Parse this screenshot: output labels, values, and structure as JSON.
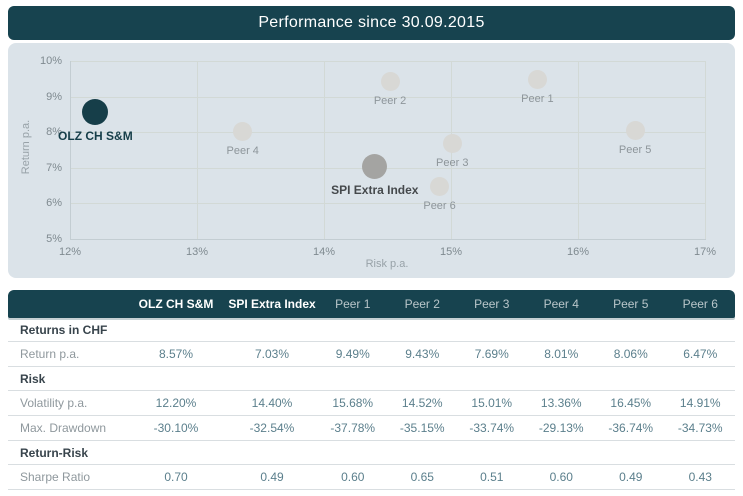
{
  "title": "Performance since 30.09.2015",
  "colors": {
    "accent_teal": "#17434f",
    "chart_bg": "#dbe3e9",
    "primary_dot": "#163e49",
    "index_dot": "#a4a4a2",
    "peer_dot": "#d8d8d5",
    "value_text": "#5b7f8c"
  },
  "chart_data": {
    "type": "scatter",
    "title": "Performance since 30.09.2015",
    "xlabel": "Risk p.a.",
    "ylabel": "Return p.a.",
    "xlim": [
      12,
      17
    ],
    "ylim": [
      5,
      10
    ],
    "x_ticks": [
      12,
      13,
      14,
      15,
      16,
      17
    ],
    "x_tick_labels": [
      "12%",
      "13%",
      "14%",
      "15%",
      "16%",
      "17%"
    ],
    "y_ticks": [
      5,
      6,
      7,
      8,
      9,
      10
    ],
    "y_tick_labels": [
      "5%",
      "6%",
      "7%",
      "8%",
      "9%",
      "10%"
    ],
    "grid": true,
    "legend": "none",
    "points": [
      {
        "label": "OLZ CH S&M",
        "x": 12.2,
        "y": 8.57,
        "style": "primary"
      },
      {
        "label": "SPI Extra Index",
        "x": 14.4,
        "y": 7.03,
        "style": "index"
      },
      {
        "label": "Peer 1",
        "x": 15.68,
        "y": 9.49,
        "style": "peer"
      },
      {
        "label": "Peer 2",
        "x": 14.52,
        "y": 9.43,
        "style": "peer"
      },
      {
        "label": "Peer 3",
        "x": 15.01,
        "y": 7.69,
        "style": "peer"
      },
      {
        "label": "Peer 4",
        "x": 13.36,
        "y": 8.01,
        "style": "peer"
      },
      {
        "label": "Peer 5",
        "x": 16.45,
        "y": 8.06,
        "style": "peer"
      },
      {
        "label": "Peer 6",
        "x": 14.91,
        "y": 6.47,
        "style": "peer"
      }
    ]
  },
  "table": {
    "header": [
      "",
      "OLZ CH S&M",
      "SPI Extra Index",
      "Peer 1",
      "Peer 2",
      "Peer 3",
      "Peer 4",
      "Peer 5",
      "Peer 6"
    ],
    "sections": [
      {
        "title": "Returns in CHF",
        "rows": [
          {
            "label": "Return p.a.",
            "values": [
              "8.57%",
              "7.03%",
              "9.49%",
              "9.43%",
              "7.69%",
              "8.01%",
              "8.06%",
              "6.47%"
            ]
          }
        ]
      },
      {
        "title": "Risk",
        "rows": [
          {
            "label": "Volatility p.a.",
            "values": [
              "12.20%",
              "14.40%",
              "15.68%",
              "14.52%",
              "15.01%",
              "13.36%",
              "16.45%",
              "14.91%"
            ]
          },
          {
            "label": "Max. Drawdown",
            "values": [
              "-30.10%",
              "-32.54%",
              "-37.78%",
              "-35.15%",
              "-33.74%",
              "-29.13%",
              "-36.74%",
              "-34.73%"
            ]
          }
        ]
      },
      {
        "title": "Return-Risk",
        "rows": [
          {
            "label": "Sharpe Ratio",
            "values": [
              "0.70",
              "0.49",
              "0.60",
              "0.65",
              "0.51",
              "0.60",
              "0.49",
              "0.43"
            ]
          }
        ]
      }
    ]
  }
}
